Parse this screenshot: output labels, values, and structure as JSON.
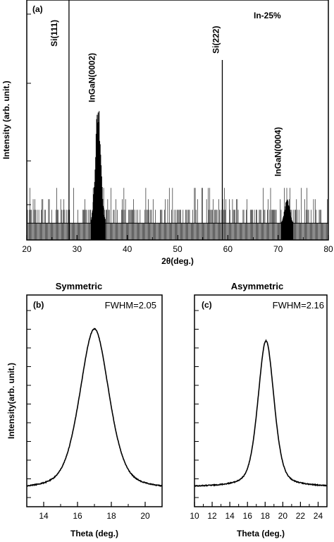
{
  "chart_data": [
    {
      "panel": "(a)",
      "type": "line",
      "annotation": "In-25%",
      "xlabel": "2θ(deg.)",
      "ylabel": "Intensity (arb. unit.)",
      "xlim": [
        20,
        80
      ],
      "xticks": [
        "20",
        "30",
        "40",
        "50",
        "60",
        "70",
        "80"
      ],
      "y_scale": "log",
      "y_tick_labels": "none",
      "peaks": [
        {
          "label": "Si(111)",
          "x": 28.4,
          "rel_height": 1.0
        },
        {
          "label": "InGaN(0002)",
          "x": 34.2,
          "rel_height": 0.6
        },
        {
          "label": "Si(222)",
          "x": 58.9,
          "rel_height": 0.75
        },
        {
          "label": "InGaN(0004)",
          "x": 71.8,
          "rel_height": 0.18
        }
      ],
      "noise_floor_rel": 0.07
    },
    {
      "panel": "(b)",
      "type": "line",
      "title": "Symmetric",
      "annotation": "FWHM=2.05",
      "xlabel": "Theta (deg.)",
      "ylabel": "Intensity(arb. unit.)",
      "xlim": [
        13,
        21
      ],
      "xticks": [
        "14",
        "16",
        "18",
        "20"
      ],
      "y_tick_labels": "none",
      "peak_center": 17.0,
      "fwhm": 2.05,
      "baseline_rel": 0.05
    },
    {
      "panel": "(c)",
      "type": "line",
      "title": "Asymmetric",
      "annotation": "FWHM=2.16",
      "xlabel": "Theta (deg.)",
      "ylabel": "",
      "xlim": [
        10,
        25
      ],
      "xticks": [
        "10",
        "12",
        "14",
        "16",
        "18",
        "20",
        "22",
        "24"
      ],
      "y_tick_labels": "none",
      "peak_center": 18.1,
      "fwhm": 2.16,
      "baseline_rel": 0.04
    }
  ]
}
